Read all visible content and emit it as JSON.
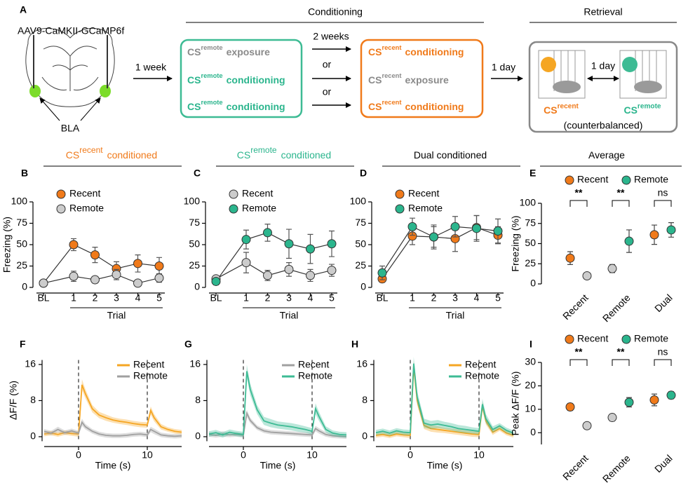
{
  "panel_a": {
    "label": "A",
    "virus": "AAV9-CaMKII-GCaMP6f",
    "region": "BLA",
    "first_interval": "1 week",
    "conditioning_title": "Conditioning",
    "retrieval_title": "Retrieval",
    "remote_box": [
      {
        "cs": "CS",
        "sup": "remote",
        "action": "exposure"
      },
      {
        "cs": "CS",
        "sup": "remote",
        "action": "conditioning"
      },
      {
        "cs": "CS",
        "sup": "remote",
        "action": "conditioning"
      }
    ],
    "gaps": [
      "2 weeks",
      "or",
      "or"
    ],
    "recent_box": [
      {
        "cs": "CS",
        "sup": "recent",
        "action": "conditioning"
      },
      {
        "cs": "CS",
        "sup": "recent",
        "action": "exposure"
      },
      {
        "cs": "CS",
        "sup": "recent",
        "action": "conditioning"
      }
    ],
    "second_interval": "1 day",
    "retrieval_interval": "1 day",
    "retrieval_cues": [
      {
        "cs": "CS",
        "sup": "recent"
      },
      {
        "cs": "CS",
        "sup": "remote"
      }
    ],
    "note": "(counterbalanced)"
  },
  "chart_data": [
    {
      "type": "line",
      "label": "B",
      "title": "CS",
      "title_sup": "recent",
      "title_suffix": "conditioned",
      "title_color": "#f07a1a",
      "categories": [
        "BL",
        "1",
        "2",
        "3",
        "4",
        "5"
      ],
      "xlabel": "Trial",
      "ylabel": "Freezing (%)",
      "ylim": [
        0,
        100
      ],
      "yticks": [
        0,
        25,
        50,
        75,
        100
      ],
      "series": [
        {
          "name": "Recent",
          "color": "#f07a1a",
          "values": [
            5,
            50,
            38,
            22,
            28,
            25
          ],
          "errors": [
            3,
            7,
            9,
            8,
            10,
            10
          ]
        },
        {
          "name": "Remote",
          "color": "#cccccc",
          "values": [
            5,
            13,
            9,
            15,
            5,
            11
          ],
          "errors": [
            3,
            6,
            4,
            6,
            2,
            5
          ]
        }
      ]
    },
    {
      "type": "line",
      "label": "C",
      "title": "CS",
      "title_sup": "remote",
      "title_suffix": "conditioned",
      "title_color": "#2bb58d",
      "categories": [
        "BL",
        "1",
        "2",
        "3",
        "4",
        "5"
      ],
      "xlabel": "Trial",
      "ylim": [
        0,
        100
      ],
      "yticks": [
        0,
        25,
        50,
        75,
        100
      ],
      "series": [
        {
          "name": "Recent",
          "color": "#cccccc",
          "values": [
            10,
            29,
            14,
            21,
            14,
            20
          ],
          "errors": [
            3,
            12,
            6,
            8,
            7,
            7
          ]
        },
        {
          "name": "Remote",
          "color": "#2bb58d",
          "values": [
            7,
            56,
            64,
            51,
            45,
            51
          ],
          "errors": [
            4,
            11,
            10,
            17,
            17,
            15
          ]
        }
      ]
    },
    {
      "type": "line",
      "label": "D",
      "title": "Dual conditioned",
      "categories": [
        "BL",
        "1",
        "2",
        "3",
        "4",
        "5"
      ],
      "xlabel": "Trial",
      "ylim": [
        0,
        100
      ],
      "yticks": [
        0,
        25,
        50,
        75,
        100
      ],
      "series": [
        {
          "name": "Recent",
          "color": "#f07a1a",
          "values": [
            10,
            60,
            59,
            57,
            70,
            61
          ],
          "errors": [
            4,
            10,
            12,
            15,
            14,
            10
          ]
        },
        {
          "name": "Remote",
          "color": "#2bb58d",
          "values": [
            17,
            71,
            59,
            71,
            69,
            66
          ],
          "errors": [
            8,
            10,
            14,
            12,
            15,
            14
          ]
        }
      ]
    },
    {
      "type": "dot",
      "label": "E",
      "title": "Average",
      "categories": [
        "Recent",
        "Remote",
        "Dual"
      ],
      "category_colors": [
        "#f07a1a",
        "#2bb58d",
        "#000000"
      ],
      "ylabel": "Freezing (%)",
      "ylim": [
        0,
        100
      ],
      "yticks": [
        0,
        25,
        50,
        75,
        100
      ],
      "significance": [
        "**",
        "**",
        "ns"
      ],
      "series": [
        {
          "name": "Recent",
          "color": "#f07a1a",
          "colors": [
            "#f07a1a",
            "#cccccc",
            "#f07a1a"
          ],
          "values": [
            32,
            19,
            61
          ],
          "errors": [
            8,
            5,
            12
          ]
        },
        {
          "name": "Remote",
          "color": "#2bb58d",
          "colors": [
            "#cccccc",
            "#2bb58d",
            "#2bb58d"
          ],
          "values": [
            10,
            53,
            67
          ],
          "errors": [
            2,
            14,
            9
          ]
        }
      ]
    },
    {
      "type": "trace",
      "label": "F",
      "xlabel": "Time (s)",
      "ylabel": "ΔF/F (%)",
      "xlim": [
        -5,
        15
      ],
      "xticks": [
        0,
        10
      ],
      "ylim": [
        -1,
        17
      ],
      "yticks": [
        0,
        8,
        16
      ],
      "events": [
        0,
        10
      ],
      "x": [
        -5,
        -4,
        -3,
        -2,
        -1,
        0,
        0.5,
        1,
        2,
        3,
        4,
        5,
        6,
        7,
        8,
        9,
        10,
        10.5,
        11,
        12,
        13,
        14,
        15
      ],
      "series": [
        {
          "name": "Recent",
          "color": "#f5a623",
          "values": [
            0.6,
            0.8,
            0.5,
            0.9,
            0.7,
            0.6,
            11.5,
            9.5,
            6.2,
            4.8,
            4.2,
            3.7,
            3.4,
            3.2,
            2.9,
            2.7,
            2.6,
            5.8,
            4.2,
            2.2,
            1.6,
            1.2,
            1.0
          ],
          "errors": [
            0.5,
            0.5,
            0.5,
            0.5,
            0.5,
            0.6,
            1.2,
            1.0,
            0.8,
            0.7,
            0.7,
            0.6,
            0.6,
            0.6,
            0.6,
            0.6,
            0.6,
            0.9,
            0.8,
            0.6,
            0.5,
            0.5,
            0.5
          ]
        },
        {
          "name": "Remote",
          "color": "#a0a0a0",
          "values": [
            1.2,
            0.8,
            1.6,
            0.9,
            1.3,
            0.8,
            3.2,
            2.2,
            1.2,
            0.6,
            0.3,
            0.2,
            0.2,
            0.3,
            0.5,
            0.6,
            0.4,
            1.6,
            1.2,
            0.4,
            0.2,
            0.1,
            0.2
          ],
          "errors": [
            0.5,
            0.5,
            0.6,
            0.5,
            0.5,
            0.5,
            0.8,
            0.6,
            0.5,
            0.5,
            0.5,
            0.5,
            0.5,
            0.5,
            0.5,
            0.5,
            0.5,
            0.6,
            0.6,
            0.5,
            0.5,
            0.5,
            0.5
          ]
        }
      ]
    },
    {
      "type": "trace",
      "label": "G",
      "xlabel": "Time (s)",
      "xlim": [
        -5,
        15
      ],
      "xticks": [
        0,
        10
      ],
      "ylim": [
        -1,
        17
      ],
      "yticks": [
        0,
        8,
        16
      ],
      "events": [
        0,
        10
      ],
      "x": [
        -5,
        -4,
        -3,
        -2,
        -1,
        0,
        0.5,
        1,
        2,
        3,
        4,
        5,
        6,
        7,
        8,
        9,
        10,
        10.5,
        11,
        12,
        13,
        14,
        15
      ],
      "series": [
        {
          "name": "Recent",
          "color": "#a0a0a0",
          "values": [
            0.5,
            0.3,
            0.6,
            0.4,
            0.5,
            0.3,
            5.2,
            3.6,
            2.0,
            1.3,
            1.0,
            0.9,
            0.8,
            0.7,
            0.6,
            0.5,
            0.4,
            1.8,
            1.3,
            0.5,
            0.2,
            0.1,
            0.0
          ],
          "errors": [
            0.5,
            0.5,
            0.6,
            0.5,
            0.5,
            0.5,
            0.8,
            0.6,
            0.5,
            0.5,
            0.5,
            0.5,
            0.5,
            0.5,
            0.5,
            0.5,
            0.5,
            0.6,
            0.6,
            0.5,
            0.5,
            0.5,
            0.5
          ]
        },
        {
          "name": "Remote",
          "color": "#3dbb94",
          "values": [
            0.6,
            0.9,
            0.4,
            1.0,
            0.7,
            0.5,
            14.5,
            10.5,
            6.0,
            3.5,
            3.0,
            2.6,
            2.4,
            2.2,
            1.9,
            1.6,
            1.2,
            6.2,
            4.5,
            1.6,
            0.8,
            0.5,
            0.4
          ],
          "errors": [
            0.6,
            0.6,
            0.6,
            0.6,
            0.6,
            0.6,
            1.5,
            1.3,
            1.0,
            0.9,
            0.9,
            0.8,
            0.8,
            0.8,
            0.8,
            0.7,
            0.7,
            1.2,
            1.0,
            0.7,
            0.6,
            0.6,
            0.6
          ]
        }
      ]
    },
    {
      "type": "trace",
      "label": "H",
      "xlabel": "Time (s)",
      "xlim": [
        -5,
        15
      ],
      "xticks": [
        0,
        10
      ],
      "ylim": [
        -1,
        17
      ],
      "yticks": [
        0,
        8,
        16
      ],
      "events": [
        0,
        10
      ],
      "x": [
        -5,
        -4,
        -3,
        -2,
        -1,
        0,
        0.5,
        1,
        2,
        3,
        4,
        5,
        6,
        7,
        8,
        9,
        10,
        10.5,
        11,
        12,
        13,
        14,
        15
      ],
      "series": [
        {
          "name": "Recent",
          "color": "#f5a623",
          "values": [
            0.3,
            0.5,
            0.2,
            0.6,
            0.4,
            0.3,
            15.5,
            8.0,
            2.5,
            1.8,
            1.6,
            1.4,
            1.2,
            1.0,
            0.8,
            0.6,
            0.5,
            6.8,
            3.5,
            1.0,
            1.8,
            0.8,
            0.3
          ],
          "errors": [
            0.5,
            0.5,
            0.5,
            0.5,
            0.5,
            0.6,
            1.2,
            1.0,
            0.8,
            0.7,
            0.7,
            0.6,
            0.6,
            0.6,
            0.6,
            0.6,
            0.6,
            0.9,
            0.8,
            0.6,
            0.5,
            0.5,
            0.5
          ]
        },
        {
          "name": "Remote",
          "color": "#3dbb94",
          "values": [
            0.9,
            1.2,
            0.8,
            1.3,
            1.0,
            0.9,
            16.2,
            8.8,
            3.0,
            2.6,
            2.8,
            2.5,
            2.2,
            1.8,
            1.6,
            1.4,
            1.2,
            7.2,
            4.0,
            1.6,
            2.4,
            1.4,
            0.8
          ],
          "errors": [
            0.6,
            0.6,
            0.6,
            0.6,
            0.6,
            0.6,
            1.5,
            1.3,
            1.0,
            0.9,
            0.9,
            0.8,
            0.8,
            0.8,
            0.8,
            0.7,
            0.7,
            1.2,
            1.0,
            0.7,
            0.6,
            0.6,
            0.6
          ]
        }
      ]
    },
    {
      "type": "dot",
      "label": "I",
      "categories": [
        "Recent",
        "Remote",
        "Dual"
      ],
      "category_colors": [
        "#f07a1a",
        "#2bb58d",
        "#000000"
      ],
      "ylabel": "Peak ΔF/F (%)",
      "ylim": [
        -5,
        30
      ],
      "yticks": [
        0,
        10,
        20,
        30
      ],
      "significance": [
        "**",
        "**",
        "ns"
      ],
      "series": [
        {
          "name": "Recent",
          "color": "#f07a1a",
          "colors": [
            "#f07a1a",
            "#cccccc",
            "#f07a1a"
          ],
          "values": [
            11,
            6.5,
            14
          ],
          "errors": [
            1.5,
            1.5,
            2.5
          ]
        },
        {
          "name": "Remote",
          "color": "#2bb58d",
          "colors": [
            "#cccccc",
            "#2bb58d",
            "#2bb58d"
          ],
          "values": [
            3,
            13,
            16
          ],
          "errors": [
            1,
            2,
            1.5
          ]
        }
      ]
    }
  ]
}
